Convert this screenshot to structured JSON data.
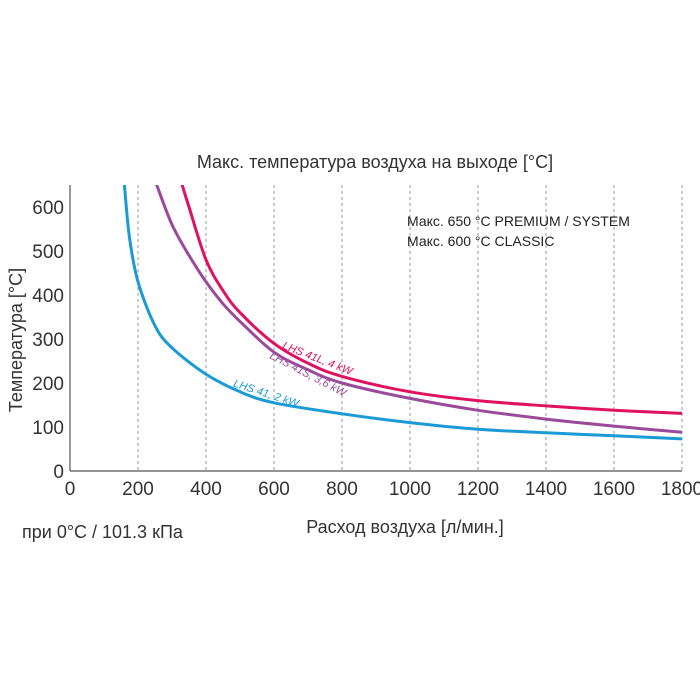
{
  "chart_data": {
    "type": "line",
    "title": "Макс. температура воздуха на выходе [°C]",
    "xlabel": "Расход воздуха [л/мин.]",
    "ylabel": "Температура [°C]",
    "xlim": [
      0,
      1800
    ],
    "ylim": [
      0,
      650
    ],
    "x_ticks": [
      "0",
      "200",
      "400",
      "600",
      "800",
      "1000",
      "1200",
      "1400",
      "1600",
      "1800"
    ],
    "y_ticks": [
      "0",
      "100",
      "200",
      "300",
      "400",
      "500",
      "600"
    ],
    "x_tick_values": [
      0,
      200,
      400,
      600,
      800,
      1000,
      1200,
      1400,
      1600,
      1800
    ],
    "y_tick_values": [
      0,
      100,
      200,
      300,
      400,
      500,
      600
    ],
    "grid": "vertical",
    "notes": [
      "Макс. 650 °C PREMIUM / SYSTEM",
      "Макс. 600 °C CLASSIC"
    ],
    "conditions": "при 0°C / 101.3 кПа",
    "series": [
      {
        "name": "LHS 41L, 4 kW",
        "color": "#e0115f",
        "x": [
          330,
          350,
          400,
          450,
          500,
          600,
          700,
          800,
          1000,
          1200,
          1400,
          1600,
          1800
        ],
        "y": [
          650,
          600,
          480,
          410,
          360,
          290,
          245,
          215,
          180,
          160,
          148,
          138,
          131
        ]
      },
      {
        "name": "LHS 41S, 3,6 kW",
        "color": "#9b4a9b",
        "x": [
          255,
          300,
          350,
          400,
          450,
          500,
          600,
          700,
          800,
          1000,
          1200,
          1400,
          1600,
          1800
        ],
        "y": [
          650,
          560,
          490,
          430,
          380,
          340,
          270,
          230,
          200,
          165,
          138,
          118,
          102,
          88
        ]
      },
      {
        "name": "LHS 41, 2 kW",
        "color": "#1a9ad6",
        "x": [
          160,
          175,
          200,
          250,
          300,
          400,
          500,
          600,
          800,
          1000,
          1200,
          1400,
          1600,
          1800
        ],
        "y": [
          650,
          530,
          430,
          330,
          280,
          220,
          180,
          155,
          130,
          110,
          95,
          87,
          80,
          73
        ]
      }
    ],
    "series_label_positions": [
      {
        "x": 720,
        "y": 240
      },
      {
        "x": 690,
        "y": 205
      },
      {
        "x": 570,
        "y": 160
      }
    ]
  }
}
